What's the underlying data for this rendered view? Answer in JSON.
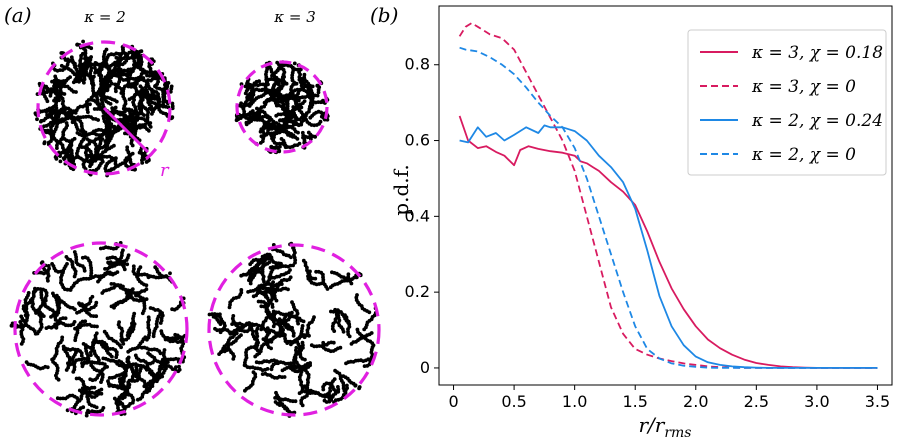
{
  "panel_a": {
    "tag": "(a)",
    "col_labels": [
      "κ = 2",
      "κ = 3"
    ],
    "radius_label": "r",
    "circle_color": "#e020e0"
  },
  "panel_b": {
    "tag": "(b)"
  },
  "chart_data": {
    "type": "line",
    "title": "",
    "xlabel": "r/r_rms",
    "ylabel": "p.d.f.",
    "xlim": [
      -0.12,
      3.62
    ],
    "ylim": [
      -0.045,
      0.955
    ],
    "xticks": [
      "0",
      "0.5",
      "1.0",
      "1.5",
      "2.0",
      "2.5",
      "3.0",
      "3.5"
    ],
    "yticks": [
      "0",
      "0.2",
      "0.4",
      "0.6",
      "0.8"
    ],
    "legend_position": "top-right",
    "series": [
      {
        "name": "κ = 3, χ = 0.18",
        "color": "#d81b60",
        "dash": "solid",
        "x": [
          0.05,
          0.12,
          0.2,
          0.27,
          0.35,
          0.42,
          0.5,
          0.55,
          0.62,
          0.7,
          0.8,
          0.9,
          1.0,
          1.05,
          1.1,
          1.15,
          1.2,
          1.3,
          1.4,
          1.5,
          1.6,
          1.7,
          1.8,
          1.9,
          2.0,
          2.1,
          2.2,
          2.3,
          2.4,
          2.5,
          2.6,
          2.7,
          2.8,
          2.9,
          3.0,
          3.1,
          3.2,
          3.3,
          3.4,
          3.5
        ],
        "y": [
          0.665,
          0.6,
          0.58,
          0.585,
          0.57,
          0.56,
          0.535,
          0.575,
          0.585,
          0.578,
          0.572,
          0.568,
          0.56,
          0.545,
          0.54,
          0.53,
          0.52,
          0.49,
          0.465,
          0.43,
          0.36,
          0.28,
          0.21,
          0.155,
          0.11,
          0.075,
          0.052,
          0.035,
          0.022,
          0.013,
          0.008,
          0.004,
          0.002,
          0.001,
          0.0,
          0.0,
          0.0,
          0.0,
          0.0,
          0.0
        ]
      },
      {
        "name": "κ = 3, χ = 0",
        "color": "#d81b60",
        "dash": "dashed",
        "x": [
          0.05,
          0.1,
          0.15,
          0.2,
          0.3,
          0.4,
          0.5,
          0.6,
          0.7,
          0.8,
          0.9,
          1.0,
          1.1,
          1.2,
          1.3,
          1.4,
          1.5,
          1.6,
          1.7,
          1.8,
          1.9,
          2.0,
          2.1,
          2.2,
          2.3,
          2.4,
          2.5,
          2.6,
          2.7,
          2.8,
          2.9,
          3.0,
          3.1,
          3.2,
          3.3,
          3.4,
          3.5
        ],
        "y": [
          0.875,
          0.9,
          0.91,
          0.9,
          0.88,
          0.87,
          0.84,
          0.78,
          0.72,
          0.66,
          0.6,
          0.52,
          0.4,
          0.28,
          0.16,
          0.09,
          0.05,
          0.035,
          0.025,
          0.018,
          0.012,
          0.008,
          0.004,
          0.002,
          0.001,
          0.0,
          0.0,
          0.0,
          0.0,
          0.0,
          0.0,
          0.0,
          0.0,
          0.0,
          0.0,
          0.0,
          0.0
        ]
      },
      {
        "name": "κ = 2, χ = 0.24",
        "color": "#1e88e5",
        "dash": "solid",
        "x": [
          0.05,
          0.12,
          0.2,
          0.27,
          0.35,
          0.42,
          0.5,
          0.6,
          0.7,
          0.75,
          0.8,
          0.9,
          0.95,
          1.0,
          1.1,
          1.2,
          1.3,
          1.4,
          1.5,
          1.6,
          1.7,
          1.8,
          1.9,
          2.0,
          2.1,
          2.2,
          2.3,
          2.4,
          2.5,
          2.6,
          2.7,
          2.8,
          2.9,
          3.0,
          3.1,
          3.2,
          3.3,
          3.4,
          3.5
        ],
        "y": [
          0.6,
          0.595,
          0.635,
          0.61,
          0.62,
          0.6,
          0.615,
          0.635,
          0.62,
          0.64,
          0.635,
          0.635,
          0.63,
          0.625,
          0.6,
          0.56,
          0.53,
          0.49,
          0.42,
          0.31,
          0.19,
          0.11,
          0.06,
          0.03,
          0.015,
          0.008,
          0.004,
          0.002,
          0.001,
          0.0,
          0.0,
          0.0,
          0.0,
          0.0,
          0.0,
          0.0,
          0.0,
          0.0,
          0.0
        ]
      },
      {
        "name": "κ = 2, χ = 0",
        "color": "#1e88e5",
        "dash": "dashed",
        "x": [
          0.05,
          0.1,
          0.2,
          0.3,
          0.4,
          0.5,
          0.6,
          0.7,
          0.8,
          0.9,
          1.0,
          1.1,
          1.2,
          1.3,
          1.4,
          1.5,
          1.6,
          1.7,
          1.8,
          1.9,
          2.0,
          2.1,
          2.2,
          2.3,
          2.4,
          2.5,
          2.6,
          2.7,
          2.8,
          2.9,
          3.0,
          3.1,
          3.2,
          3.3,
          3.4,
          3.5
        ],
        "y": [
          0.845,
          0.84,
          0.835,
          0.82,
          0.8,
          0.775,
          0.74,
          0.7,
          0.665,
          0.635,
          0.58,
          0.5,
          0.4,
          0.3,
          0.2,
          0.11,
          0.05,
          0.025,
          0.012,
          0.006,
          0.003,
          0.001,
          0.0,
          0.0,
          0.0,
          0.0,
          0.0,
          0.0,
          0.0,
          0.0,
          0.0,
          0.0,
          0.0,
          0.0,
          0.0,
          0.0
        ]
      }
    ]
  }
}
